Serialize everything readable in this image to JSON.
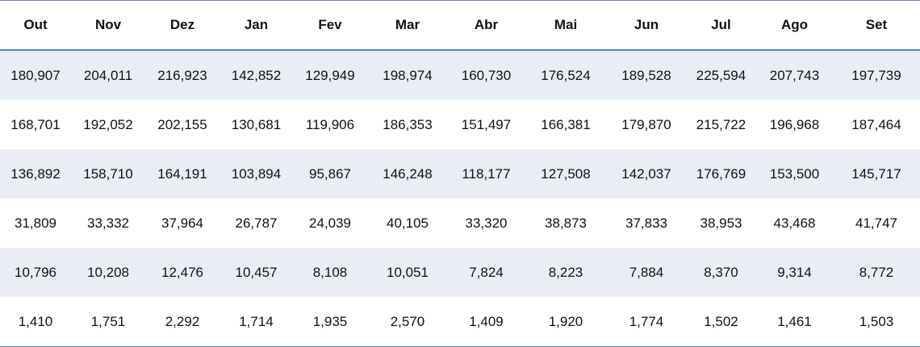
{
  "table": {
    "header": [
      "Out",
      "Nov",
      "Dez",
      "Jan",
      "Fev",
      "Mar",
      "Abr",
      "Mai",
      "Jun",
      "Jul",
      "Ago",
      "Set"
    ],
    "rows": [
      [
        "180,907",
        "204,011",
        "216,923",
        "142,852",
        "129,949",
        "198,974",
        "160,730",
        "176,524",
        "189,528",
        "225,594",
        "207,743",
        "197,739"
      ],
      [
        "168,701",
        "192,052",
        "202,155",
        "130,681",
        "119,906",
        "186,353",
        "151,497",
        "166,381",
        "179,870",
        "215,722",
        "196,968",
        "187,464"
      ],
      [
        "136,892",
        "158,710",
        "164,191",
        "103,894",
        "95,867",
        "146,248",
        "118,177",
        "127,508",
        "142,037",
        "176,769",
        "153,500",
        "145,717"
      ],
      [
        "31,809",
        "33,332",
        "37,964",
        "26,787",
        "24,039",
        "40,105",
        "33,320",
        "38,873",
        "37,833",
        "38,953",
        "43,468",
        "41,747"
      ],
      [
        "10,796",
        "10,208",
        "12,476",
        "10,457",
        "8,108",
        "10,051",
        "7,824",
        "8,223",
        "7,884",
        "8,370",
        "9,314",
        "8,772"
      ],
      [
        "1,410",
        "1,751",
        "2,292",
        "1,714",
        "1,935",
        "2,570",
        "1,409",
        "1,920",
        "1,774",
        "1,502",
        "1,461",
        "1,503"
      ]
    ]
  }
}
